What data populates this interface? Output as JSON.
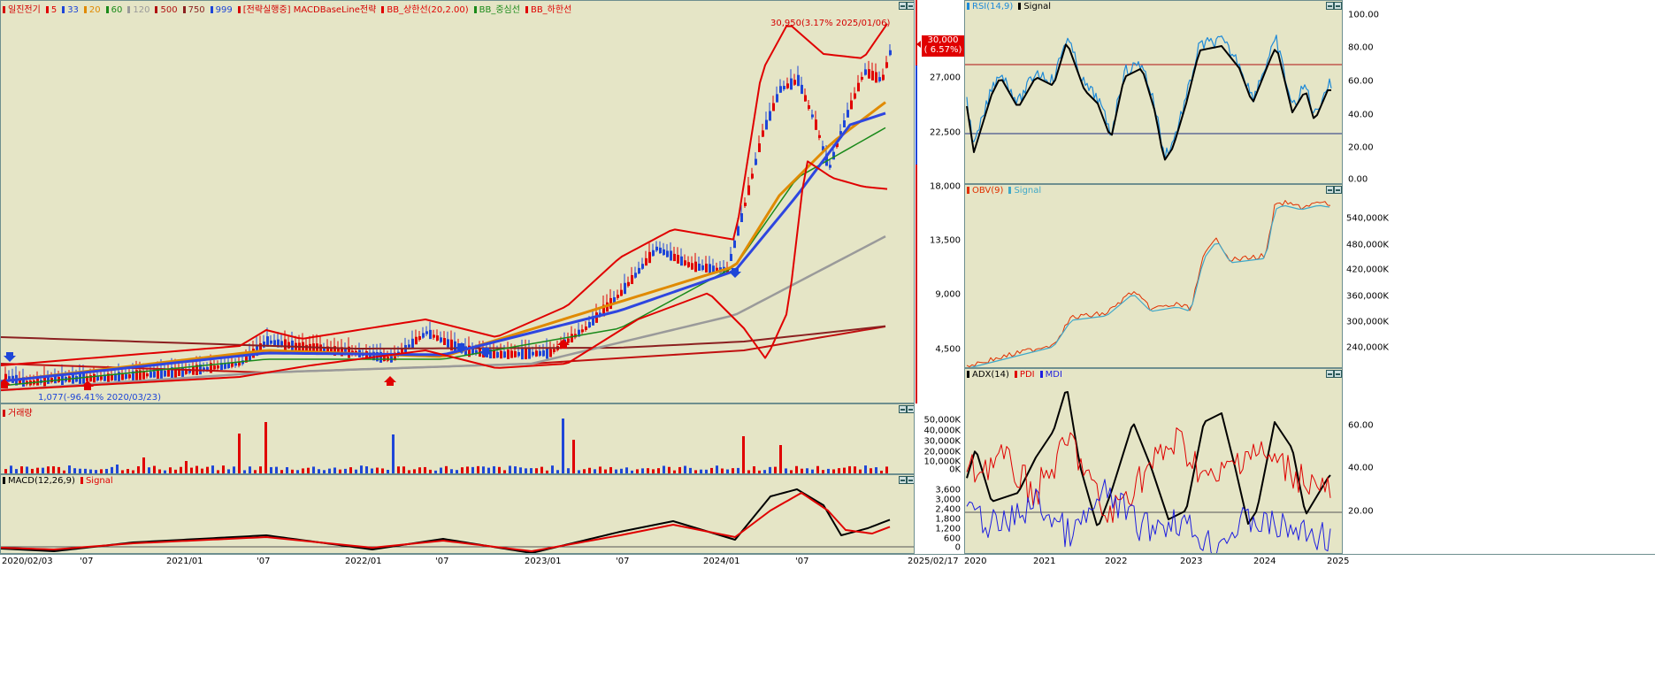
{
  "main_chart": {
    "legend": [
      {
        "text": "일진전기",
        "color": "#d40000"
      },
      {
        "text": "5",
        "color": "#e00000"
      },
      {
        "text": "33",
        "color": "#1e46d8"
      },
      {
        "text": "20",
        "color": "#e08a00"
      },
      {
        "text": "60",
        "color": "#1a8a1a"
      },
      {
        "text": "120",
        "color": "#9a9a9a"
      },
      {
        "text": "500",
        "color": "#b01010"
      },
      {
        "text": "750",
        "color": "#8b2020"
      },
      {
        "text": "999",
        "color": "#1e46d8"
      },
      {
        "text": "[전략실행중] MACDBaseLine전략",
        "color": "#d40000"
      },
      {
        "text": "BB_상한선(20,2.00)",
        "color": "#e00000"
      },
      {
        "text": "BB_중심선",
        "color": "#1a8a1a"
      },
      {
        "text": "BB_하한선",
        "color": "#e00000"
      }
    ],
    "high_annotation": "30,950(3.17% 2025/01/06)",
    "low_annotation": "1,077(-96.41% 2020/03/23)",
    "price_box": {
      "price": "30,000",
      "change": "( 6.57%)"
    },
    "yticks": [
      "27,000",
      "22,500",
      "18,000",
      "13,500",
      "9,000",
      "4,500"
    ]
  },
  "volume_chart": {
    "legend": [
      {
        "text": "거래량",
        "color": "#d40000"
      }
    ],
    "yticks": [
      "50,000K",
      "40,000K",
      "30,000K",
      "20,000K",
      "10,000K",
      "0K"
    ]
  },
  "macd_chart": {
    "legend": [
      {
        "text": "MACD(12,26,9)",
        "color": "#000000"
      },
      {
        "text": "Signal",
        "color": "#e00000"
      }
    ],
    "yticks": [
      "3,600",
      "3,000",
      "2,400",
      "1,800",
      "1,200",
      "600",
      "0"
    ]
  },
  "x_axis_left": {
    "labels": [
      "2020/02/03",
      "'07",
      "2021/01",
      "'07",
      "2022/01",
      "'07",
      "2023/01",
      "'07",
      "2024/01",
      "'07",
      "2025/02/17"
    ]
  },
  "rsi_chart": {
    "legend": [
      {
        "text": "RSI(14,9)",
        "color": "#1e8ad8"
      },
      {
        "text": "Signal",
        "color": "#000000"
      }
    ],
    "yticks": [
      "100.00",
      "80.00",
      "60.00",
      "40.00",
      "20.00",
      "0.00"
    ]
  },
  "obv_chart": {
    "legend": [
      {
        "text": "OBV(9)",
        "color": "#e03000"
      },
      {
        "text": "Signal",
        "color": "#40a8c8"
      }
    ],
    "yticks": [
      "540,000K",
      "480,000K",
      "420,000K",
      "360,000K",
      "300,000K",
      "240,000K"
    ]
  },
  "adx_chart": {
    "legend": [
      {
        "text": "ADX(14)",
        "color": "#000000"
      },
      {
        "text": "PDI",
        "color": "#e00000"
      },
      {
        "text": "MDI",
        "color": "#1e1ee0"
      }
    ],
    "yticks": [
      "60.00",
      "40.00",
      "20.00"
    ]
  },
  "x_axis_right": {
    "labels": [
      "2020",
      "2021",
      "2022",
      "2023",
      "2024",
      "2025"
    ]
  },
  "colors": {
    "panel_bg": "#e5e5c6",
    "up": "#e00000",
    "down": "#1e46d8",
    "border": "#6e8f8f"
  }
}
